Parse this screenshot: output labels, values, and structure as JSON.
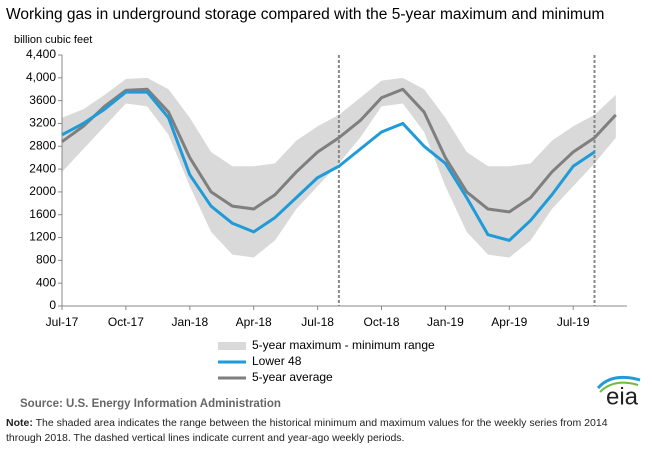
{
  "chart_data": {
    "type": "line",
    "title": "Working gas in underground storage compared with the 5-year maximum and minimum",
    "ylabel": "billion cubic feet",
    "x": [
      "Jul-17",
      "Aug-17",
      "Sep-17",
      "Oct-17",
      "Nov-17",
      "Dec-17",
      "Jan-18",
      "Feb-18",
      "Mar-18",
      "Apr-18",
      "May-18",
      "Jun-18",
      "Jul-18",
      "Aug-18",
      "Sep-18",
      "Oct-18",
      "Nov-18",
      "Dec-18",
      "Jan-19",
      "Feb-19",
      "Mar-19",
      "Apr-19",
      "May-19",
      "Jun-19",
      "Jul-19",
      "Aug-19",
      "Sep-19"
    ],
    "xticks": [
      "Jul-17",
      "Oct-17",
      "Jan-18",
      "Apr-18",
      "Jul-18",
      "Oct-18",
      "Jan-19",
      "Apr-19",
      "Jul-19"
    ],
    "vlines": [
      "Aug-18",
      "Aug-19"
    ],
    "ylim": [
      0,
      4400
    ],
    "yticks": [
      0,
      400,
      800,
      1200,
      1600,
      2000,
      2400,
      2800,
      3200,
      3600,
      {
        "value": 4000,
        "label": "4,000"
      },
      {
        "value": 4400,
        "label": "4,400"
      }
    ],
    "yticks_fmt_note": null,
    "series": [
      {
        "name": "5-year maximum - minimum range",
        "color": "#d9d9d9",
        "high": [
          3300,
          3450,
          3700,
          3980,
          4000,
          3800,
          3300,
          2700,
          2450,
          2450,
          2500,
          2900,
          3150,
          3350,
          3650,
          3950,
          4000,
          3800,
          3300,
          2700,
          2450,
          2450,
          2500,
          2900,
          3150,
          3350,
          3700
        ],
        "low": [
          2350,
          2750,
          3150,
          3550,
          3500,
          3000,
          2100,
          1300,
          900,
          850,
          1150,
          1700,
          2100,
          2500,
          2950,
          3500,
          3550,
          3050,
          2100,
          1300,
          900,
          850,
          1150,
          1700,
          2100,
          2500,
          2950
        ]
      },
      {
        "name": "Lower 48",
        "color": "#1f9bd7",
        "values": [
          3000,
          3200,
          3450,
          3750,
          3750,
          3300,
          2300,
          1750,
          1450,
          1300,
          1550,
          1900,
          2250,
          2450,
          2750,
          3050,
          3200,
          2800,
          2500,
          1900,
          1250,
          1150,
          1500,
          1950,
          2450,
          2700,
          null
        ]
      },
      {
        "name": "5-year average",
        "color": "#7f7f7f",
        "values": [
          2880,
          3150,
          3500,
          3780,
          3800,
          3400,
          2600,
          2000,
          1750,
          1700,
          1950,
          2350,
          2700,
          2950,
          3250,
          3650,
          3800,
          3400,
          2600,
          2000,
          1700,
          1650,
          1900,
          2350,
          2700,
          2950,
          3350
        ]
      }
    ],
    "source": "Source:  U.S. Energy Information Administration",
    "note_label": "Note:",
    "note": "The shaded area indicates the range between the historical minimum and maximum values for the weekly series from 2014 through 2018. The dashed vertical lines indicate current and year-ago weekly periods.",
    "logo": "eia"
  }
}
